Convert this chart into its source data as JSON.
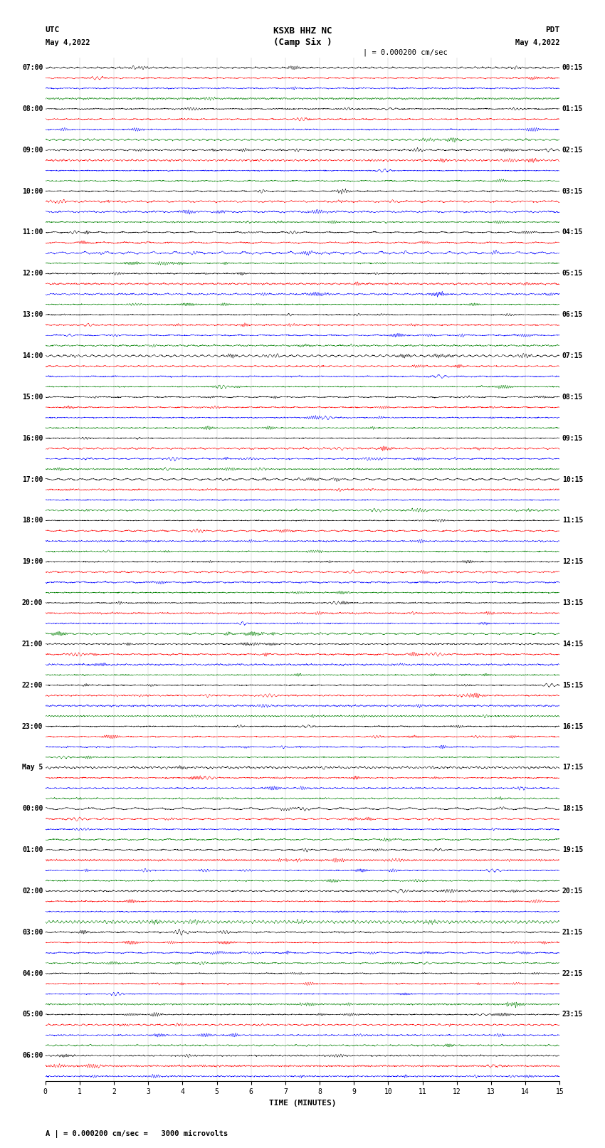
{
  "title_line1": "KSXB HHZ NC",
  "title_line2": "(Camp Six )",
  "utc_label": "UTC",
  "pdt_label": "PDT",
  "date_left": "May 4,2022",
  "date_right": "May 4,2022",
  "scale_text": "| = 0.000200 cm/sec",
  "bottom_label": "A | = 0.000200 cm/sec =   3000 microvolts",
  "xlabel": "TIME (MINUTES)",
  "xticks": [
    0,
    1,
    2,
    3,
    4,
    5,
    6,
    7,
    8,
    9,
    10,
    11,
    12,
    13,
    14,
    15
  ],
  "time_minutes": 15,
  "colors": [
    "black",
    "red",
    "blue",
    "green"
  ],
  "left_labels": [
    [
      "07:00",
      0
    ],
    [
      "08:00",
      4
    ],
    [
      "09:00",
      8
    ],
    [
      "10:00",
      12
    ],
    [
      "11:00",
      16
    ],
    [
      "12:00",
      20
    ],
    [
      "13:00",
      24
    ],
    [
      "14:00",
      28
    ],
    [
      "15:00",
      32
    ],
    [
      "16:00",
      36
    ],
    [
      "17:00",
      40
    ],
    [
      "18:00",
      44
    ],
    [
      "19:00",
      48
    ],
    [
      "20:00",
      52
    ],
    [
      "21:00",
      56
    ],
    [
      "22:00",
      60
    ],
    [
      "23:00",
      64
    ],
    [
      "May 5",
      68
    ],
    [
      "00:00",
      72
    ],
    [
      "01:00",
      76
    ],
    [
      "02:00",
      80
    ],
    [
      "03:00",
      84
    ],
    [
      "04:00",
      88
    ],
    [
      "05:00",
      92
    ],
    [
      "06:00",
      96
    ]
  ],
  "right_labels": [
    [
      "00:15",
      0
    ],
    [
      "01:15",
      4
    ],
    [
      "02:15",
      8
    ],
    [
      "03:15",
      12
    ],
    [
      "04:15",
      16
    ],
    [
      "05:15",
      20
    ],
    [
      "06:15",
      24
    ],
    [
      "07:15",
      28
    ],
    [
      "08:15",
      32
    ],
    [
      "09:15",
      36
    ],
    [
      "10:15",
      40
    ],
    [
      "11:15",
      44
    ],
    [
      "12:15",
      48
    ],
    [
      "13:15",
      52
    ],
    [
      "14:15",
      56
    ],
    [
      "15:15",
      60
    ],
    [
      "16:15",
      64
    ],
    [
      "17:15",
      68
    ],
    [
      "18:15",
      72
    ],
    [
      "19:15",
      76
    ],
    [
      "20:15",
      80
    ],
    [
      "21:15",
      84
    ],
    [
      "22:15",
      88
    ],
    [
      "23:15",
      92
    ]
  ],
  "n_rows": 99,
  "figsize": [
    8.5,
    16.13
  ],
  "dpi": 100
}
